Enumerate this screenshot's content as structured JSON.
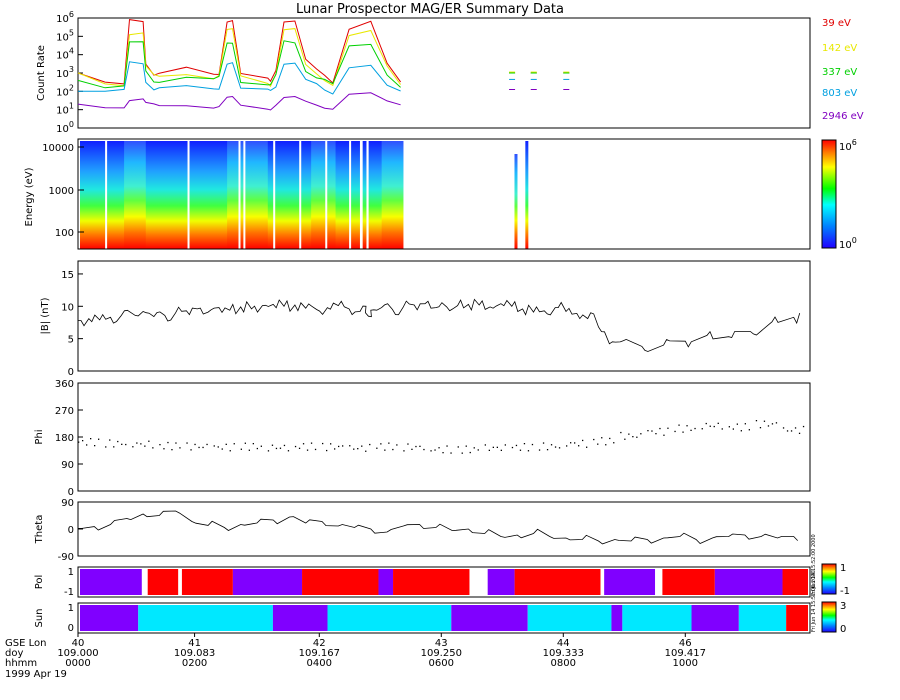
{
  "title": "Lunar Prospector MAG/ER Summary Data",
  "chart_data": [
    {
      "type": "line",
      "panel": "count-rate",
      "ylabel": "Count Rate",
      "yscale": "log",
      "ylim_exp": [
        0,
        6
      ],
      "y_ticks": [
        {
          "base": "10",
          "exp": "0"
        },
        {
          "base": "10",
          "exp": "1"
        },
        {
          "base": "10",
          "exp": "2"
        },
        {
          "base": "10",
          "exp": "3"
        },
        {
          "base": "10",
          "exp": "4"
        },
        {
          "base": "10",
          "exp": "5"
        },
        {
          "base": "10",
          "exp": "6"
        }
      ],
      "x": [
        0,
        0.5,
        0.85,
        0.95,
        1.2,
        1.25,
        1.4,
        1.5,
        2.0,
        2.5,
        2.6,
        2.75,
        2.85,
        3.0,
        3.5,
        3.55,
        3.65,
        3.8,
        4.0,
        4.2,
        4.4,
        4.55,
        4.7,
        5.0,
        5.4,
        5.7,
        5.95
      ],
      "gaps": [
        [
          6.0,
          7.9
        ],
        [
          8.05,
          8.3
        ],
        [
          8.5,
          8.9
        ]
      ],
      "series": [
        {
          "name": "39 eV",
          "color": "#e00000",
          "log_values": [
            3.0,
            2.4,
            2.3,
            5.9,
            5.9,
            3.6,
            2.9,
            2.9,
            3.2,
            2.9,
            3.0,
            5.9,
            5.9,
            2.9,
            2.6,
            2.5,
            3.2,
            5.9,
            5.9,
            3.7,
            3.1,
            2.8,
            2.5,
            5.5,
            5.9,
            3.5,
            2.4
          ]
        },
        {
          "name": "142 eV",
          "color": "#e8e800",
          "log_values": [
            2.9,
            2.4,
            2.4,
            5.2,
            5.2,
            3.3,
            2.8,
            2.8,
            3.0,
            2.8,
            2.9,
            5.3,
            5.3,
            2.8,
            2.5,
            2.4,
            3.0,
            5.3,
            5.3,
            3.4,
            3.0,
            2.7,
            2.4,
            5.0,
            5.2,
            3.3,
            2.4
          ]
        },
        {
          "name": "337 eV",
          "color": "#00d000",
          "log_values": [
            2.7,
            2.3,
            2.3,
            4.6,
            4.6,
            3.1,
            2.6,
            2.6,
            2.8,
            2.6,
            2.7,
            4.6,
            4.7,
            2.6,
            2.4,
            2.3,
            2.8,
            4.7,
            4.7,
            3.2,
            2.8,
            2.6,
            2.3,
            4.4,
            4.6,
            3.0,
            2.3
          ]
        },
        {
          "name": "803 eV",
          "color": "#00a0e0",
          "log_values": [
            2.0,
            1.9,
            2.0,
            3.6,
            3.6,
            2.6,
            2.1,
            2.1,
            2.2,
            2.1,
            2.2,
            3.6,
            3.6,
            2.1,
            2.0,
            2.0,
            2.3,
            3.6,
            3.6,
            2.6,
            2.3,
            2.0,
            1.9,
            3.4,
            3.5,
            2.3,
            1.9
          ]
        },
        {
          "name": "2946 eV",
          "color": "#8000c0",
          "log_values": [
            1.2,
            1.1,
            1.2,
            1.6,
            1.6,
            1.3,
            1.2,
            1.2,
            1.3,
            1.2,
            1.2,
            1.6,
            1.6,
            1.2,
            1.1,
            1.1,
            1.3,
            1.6,
            1.6,
            1.4,
            1.3,
            1.2,
            1.1,
            1.8,
            1.8,
            1.4,
            1.3
          ]
        }
      ]
    },
    {
      "type": "heatmap",
      "panel": "spectrogram",
      "ylabel": "Energy (eV)",
      "y_tick_labels": [
        "10000",
        "1000",
        "100"
      ],
      "colorbar": {
        "max_base": "10",
        "max_exp": "6",
        "min_base": "10",
        "min_exp": "0"
      }
    },
    {
      "type": "line",
      "panel": "b-magnitude",
      "ylabel": "|B| (nT)",
      "ylim": [
        0,
        17
      ],
      "y_ticks": [
        "0",
        "5",
        "10",
        "15"
      ],
      "x": [
        0,
        0.2,
        0.4,
        0.6,
        0.8,
        1.0,
        1.2,
        1.4,
        1.6,
        1.8,
        2.0,
        2.2,
        2.4,
        2.6,
        2.8,
        3.0,
        3.2,
        3.4,
        3.6,
        3.8,
        4.0,
        4.2,
        4.4,
        4.6,
        4.8,
        5.0,
        5.2,
        5.3,
        5.4,
        5.6,
        5.8,
        6.0,
        6.2,
        6.4,
        6.6,
        6.8,
        7.0,
        7.2,
        7.4,
        7.6,
        7.8,
        8.0,
        8.2,
        8.4,
        8.6,
        8.8,
        9.0,
        9.2,
        9.4,
        9.6,
        9.8,
        10.0,
        10.4,
        10.8,
        11.2,
        11.6,
        12.0,
        12.4,
        12.8,
        13.2
      ],
      "values": [
        7.8,
        8.1,
        7.9,
        8.3,
        8.6,
        8.9,
        9.2,
        8.4,
        8.6,
        9.0,
        9.3,
        9.6,
        9.1,
        9.8,
        9.4,
        9.9,
        9.6,
        10.1,
        10.3,
        10.0,
        10.2,
        9.7,
        9.5,
        9.8,
        10.1,
        9.6,
        9.2,
        9.0,
        9.4,
        9.8,
        9.5,
        9.9,
        10.2,
        10.4,
        9.8,
        9.9,
        10.1,
        10.3,
        10.2,
        9.9,
        10.4,
        10.0,
        9.6,
        9.1,
        9.3,
        9.8,
        9.2,
        8.9,
        8.1,
        6.8,
        4.2,
        4.5,
        3.8,
        4.0,
        4.6,
        5.5,
        5.3,
        6.1,
        7.6,
        8.3
      ]
    },
    {
      "type": "scatter",
      "panel": "phi",
      "ylabel": "Phi",
      "ylim": [
        0,
        360
      ],
      "y_ticks": [
        "0",
        "90",
        "180",
        "270",
        "360"
      ],
      "x": [
        0,
        0.5,
        1.0,
        1.5,
        2.0,
        2.5,
        3.0,
        3.5,
        4.0,
        4.5,
        5.0,
        5.5,
        6.0,
        6.5,
        7.0,
        7.5,
        8.0,
        8.5,
        9.0,
        9.5,
        10.0,
        10.5,
        11.0,
        11.5,
        12.0,
        12.5,
        13.0
      ],
      "values": [
        165,
        160,
        158,
        152,
        150,
        148,
        150,
        147,
        150,
        149,
        145,
        150,
        148,
        140,
        140,
        145,
        148,
        150,
        160,
        168,
        185,
        200,
        210,
        220,
        215,
        225,
        205
      ]
    },
    {
      "type": "line",
      "panel": "theta",
      "ylabel": "Theta",
      "ylim": [
        -90,
        90
      ],
      "y_ticks": [
        "-90",
        "0",
        "90"
      ],
      "x": [
        0,
        0.3,
        0.6,
        0.9,
        1.2,
        1.5,
        1.8,
        2.1,
        2.4,
        2.7,
        3.0,
        3.3,
        3.6,
        3.9,
        4.2,
        4.5,
        4.8,
        5.1,
        5.4,
        5.7,
        6.0,
        6.3,
        6.6,
        6.9,
        7.2,
        7.5,
        7.8,
        8.1,
        8.4,
        8.7,
        9.0,
        9.3,
        9.6,
        9.9,
        10.2,
        10.5,
        10.8,
        11.1,
        11.4,
        11.7,
        12.0,
        12.3,
        12.6,
        12.9,
        13.2
      ],
      "values": [
        2,
        8,
        15,
        35,
        50,
        45,
        60,
        25,
        12,
        5,
        15,
        20,
        30,
        40,
        20,
        25,
        10,
        5,
        0,
        -10,
        10,
        15,
        5,
        -5,
        0,
        -15,
        -25,
        -20,
        -15,
        -25,
        -30,
        -35,
        -40,
        -35,
        -40,
        -35,
        -30,
        -25,
        -35,
        -30,
        -25,
        -20,
        -25,
        -30,
        -25
      ]
    },
    {
      "type": "table",
      "panel": "pol",
      "ylabel": "Pol",
      "y_ticks": [
        "1",
        "-1"
      ],
      "colorbar_labels": [
        "1",
        "-1"
      ],
      "segments": [
        {
          "start": 0.0,
          "end": 0.085,
          "color": "#8000ff"
        },
        {
          "start": 0.085,
          "end": 0.093,
          "color": "#ffffff"
        },
        {
          "start": 0.093,
          "end": 0.135,
          "color": "#ff0000"
        },
        {
          "start": 0.135,
          "end": 0.14,
          "color": "#ffffff"
        },
        {
          "start": 0.14,
          "end": 0.21,
          "color": "#ff0000"
        },
        {
          "start": 0.21,
          "end": 0.305,
          "color": "#8000ff"
        },
        {
          "start": 0.305,
          "end": 0.41,
          "color": "#ff0000"
        },
        {
          "start": 0.41,
          "end": 0.43,
          "color": "#8000ff"
        },
        {
          "start": 0.43,
          "end": 0.535,
          "color": "#ff0000"
        },
        {
          "start": 0.535,
          "end": 0.56,
          "color": "#ffffff"
        },
        {
          "start": 0.56,
          "end": 0.597,
          "color": "#8000ff"
        },
        {
          "start": 0.597,
          "end": 0.715,
          "color": "#ff0000"
        },
        {
          "start": 0.715,
          "end": 0.72,
          "color": "#ffffff"
        },
        {
          "start": 0.72,
          "end": 0.79,
          "color": "#8000ff"
        },
        {
          "start": 0.79,
          "end": 0.8,
          "color": "#ffffff"
        },
        {
          "start": 0.8,
          "end": 0.872,
          "color": "#ff0000"
        },
        {
          "start": 0.872,
          "end": 0.965,
          "color": "#8000ff"
        },
        {
          "start": 0.965,
          "end": 1.0,
          "color": "#ff0000"
        }
      ]
    },
    {
      "type": "table",
      "panel": "sun",
      "ylabel": "Sun",
      "y_ticks": [
        "1",
        "0"
      ],
      "colorbar_labels": [
        "3",
        "0"
      ],
      "segments": [
        {
          "start": 0.0,
          "end": 0.08,
          "color": "#8000ff"
        },
        {
          "start": 0.08,
          "end": 0.265,
          "color": "#00e8ff"
        },
        {
          "start": 0.265,
          "end": 0.34,
          "color": "#8000ff"
        },
        {
          "start": 0.34,
          "end": 0.51,
          "color": "#00e8ff"
        },
        {
          "start": 0.51,
          "end": 0.615,
          "color": "#8000ff"
        },
        {
          "start": 0.615,
          "end": 0.73,
          "color": "#00e8ff"
        },
        {
          "start": 0.73,
          "end": 0.745,
          "color": "#8000ff"
        },
        {
          "start": 0.745,
          "end": 0.84,
          "color": "#00e8ff"
        },
        {
          "start": 0.84,
          "end": 0.905,
          "color": "#8000ff"
        },
        {
          "start": 0.905,
          "end": 0.97,
          "color": "#00e8ff"
        },
        {
          "start": 0.97,
          "end": 1.0,
          "color": "#ff0000"
        }
      ]
    }
  ],
  "x_axis": {
    "row_labels": [
      "GSE Lon",
      "doy",
      "hhmm"
    ],
    "ticks": [
      {
        "lon": "40",
        "doy": "109.000",
        "hhmm": "0000"
      },
      {
        "lon": "41",
        "doy": "109.083",
        "hhmm": "0200"
      },
      {
        "lon": "42",
        "doy": "109.167",
        "hhmm": "0400"
      },
      {
        "lon": "43",
        "doy": "109.250",
        "hhmm": "0600"
      },
      {
        "lon": "44",
        "doy": "109.333",
        "hhmm": "0800"
      },
      {
        "lon": "46",
        "doy": "109.417",
        "hhmm": "1000"
      }
    ],
    "date": "1999 Apr 19"
  },
  "side_notes": {
    "pol_note": "Fri Jun 14 15:52:00 2000",
    "sun_note": "Fri Jun 14 15:52:00 2000"
  }
}
